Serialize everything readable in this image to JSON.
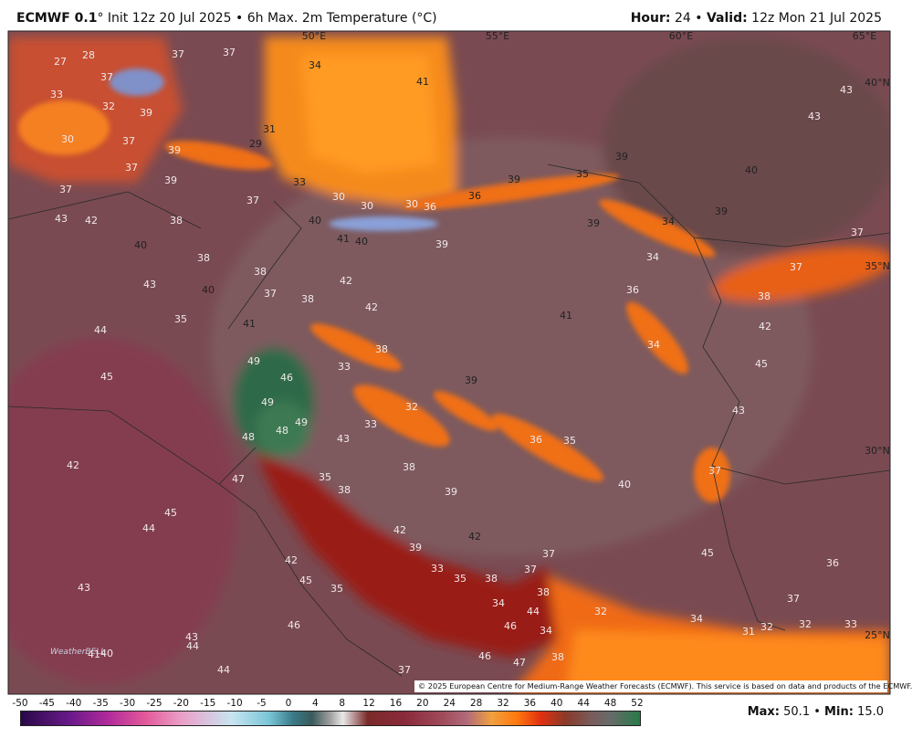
{
  "header": {
    "model": "ECMWF 0.1",
    "description": "° Init 12z 20 Jul 2025 • 6h Max. 2m Temperature (°C)",
    "hour_label": "Hour:",
    "hour": 24,
    "separator": "•",
    "valid_label": "Valid:",
    "valid": "12z Mon 21 Jul 2025"
  },
  "map": {
    "grid_labels": [
      "50°E",
      "55°E",
      "60°E",
      "65°E",
      "40°N",
      "35°N",
      "30°N",
      "25°N"
    ],
    "temperature_labels": [
      27,
      28,
      37,
      37,
      34,
      41,
      43,
      33,
      37,
      32,
      39,
      43,
      30,
      37,
      39,
      31,
      29,
      39,
      40,
      37,
      39,
      33,
      39,
      35,
      37,
      37,
      30,
      30,
      30,
      36,
      36,
      39,
      43,
      42,
      38,
      40,
      39,
      34,
      37,
      40,
      41,
      40,
      39,
      34,
      38,
      38,
      37,
      43,
      42,
      36,
      40,
      37,
      38,
      42,
      38,
      35,
      41,
      41,
      42,
      44,
      34,
      38,
      49,
      45,
      33,
      46,
      39,
      45,
      49,
      32,
      43,
      49,
      48,
      33,
      48,
      43,
      36,
      35,
      42,
      38,
      37,
      47,
      35,
      38,
      39,
      40,
      45,
      44,
      42,
      42,
      39,
      45,
      42,
      33,
      35,
      38,
      37,
      37,
      36,
      45,
      35,
      38,
      34,
      44,
      32,
      37,
      43,
      46,
      46,
      34,
      34,
      31,
      32,
      32,
      33,
      43,
      44,
      41,
      40,
      46,
      47,
      38,
      44,
      37
    ],
    "credit": "© 2025 European Centre for Medium-Range Weather Forecasts (ECMWF). This service is based on data and products of the ECMWF.",
    "watermark": "WeatherBELL"
  },
  "colorbar": {
    "ticks": [
      -50,
      -45,
      -40,
      -35,
      -30,
      -25,
      -20,
      -15,
      -10,
      -5,
      0,
      4,
      8,
      12,
      16,
      20,
      24,
      28,
      32,
      36,
      40,
      44,
      48,
      52
    ]
  },
  "footer": {
    "max_label": "Max:",
    "max": 50.1,
    "separator": "•",
    "min_label": "Min:",
    "min": "15.0"
  }
}
